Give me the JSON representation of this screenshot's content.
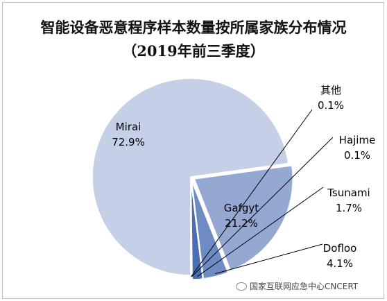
{
  "chart_data": {
    "type": "pie",
    "title": "智能设备恶意程序样本数量按所属家族分布情况",
    "subtitle": "（2019年前三季度）",
    "slices": [
      {
        "label": "Mirai",
        "value": 72.9,
        "value_label": "72.9%",
        "color": "#c5cfe6"
      },
      {
        "label": "Gafgyt",
        "value": 21.2,
        "value_label": "21.2%",
        "color": "#94a8d2"
      },
      {
        "label": "Dofloo",
        "value": 4.1,
        "value_label": "4.1%",
        "color": "#6f8bc3"
      },
      {
        "label": "Tsunami",
        "value": 1.7,
        "value_label": "1.7%",
        "color": "#4a6cb0"
      },
      {
        "label": "Hajime",
        "value": 0.1,
        "value_label": "0.1%",
        "color": "#34599f"
      },
      {
        "label": "其他",
        "value": 0.1,
        "value_label": "0.1%",
        "color": "#25457f"
      }
    ]
  },
  "watermark": "国家互联网应急中心CNCERT",
  "watermark_icon": "wechat-icon"
}
